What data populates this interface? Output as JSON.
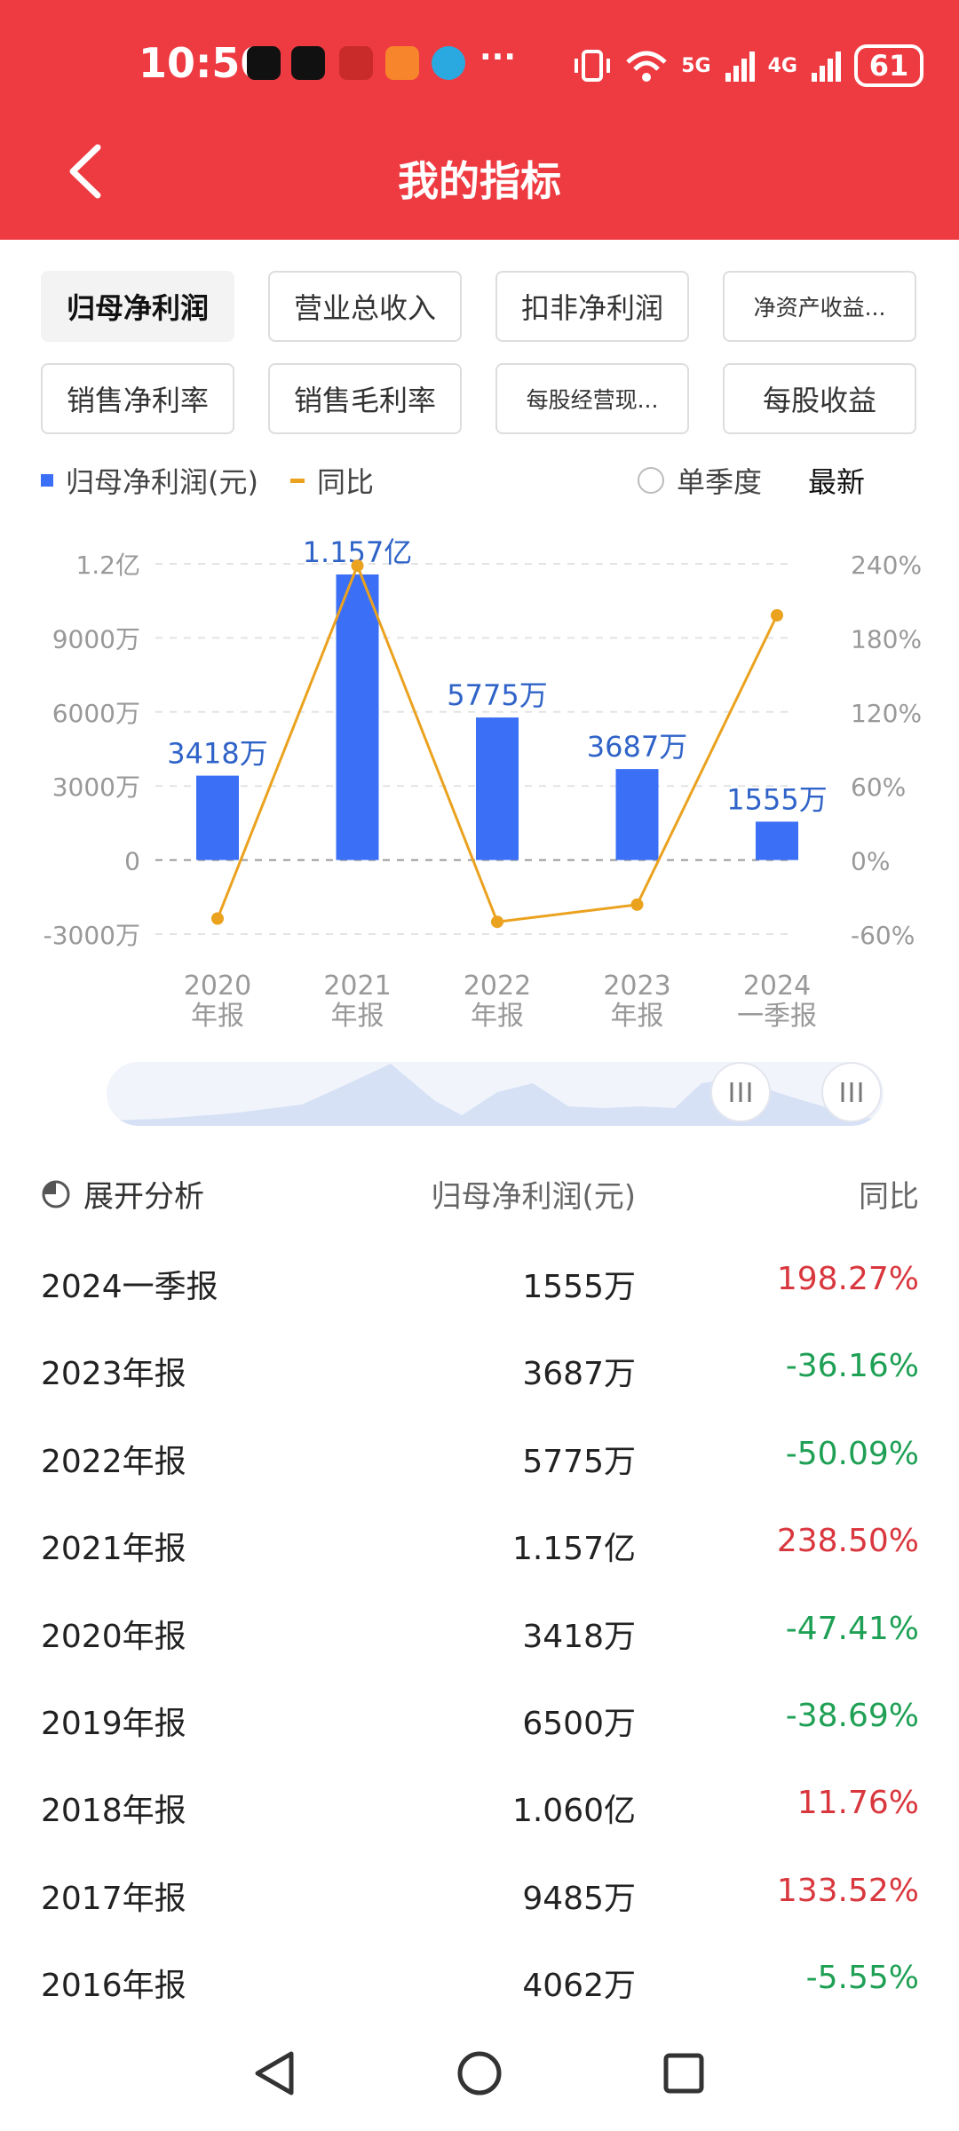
{
  "status_bar": {
    "time": "10:50",
    "network_5g": "5G",
    "network_4g": "4G",
    "battery": "61"
  },
  "header": {
    "title": "我的指标"
  },
  "tabs": [
    {
      "label": "归母净利润",
      "active": true
    },
    {
      "label": "营业总收入",
      "active": false
    },
    {
      "label": "扣非净利润",
      "active": false
    },
    {
      "label": "净资产收益...",
      "active": false
    },
    {
      "label": "销售净利率",
      "active": false
    },
    {
      "label": "销售毛利率",
      "active": false
    },
    {
      "label": "每股经营现...",
      "active": false
    },
    {
      "label": "每股收益",
      "active": false
    }
  ],
  "legend": {
    "bar_label": "归母净利润(元)",
    "line_label": "同比",
    "single_quarter": "单季度",
    "latest": "最新"
  },
  "colors": {
    "bar": "#3b6ff5",
    "line": "#eaa21f",
    "positive": "#d9373e",
    "negative": "#1fa055",
    "header": "#ee3a41"
  },
  "chart_data": {
    "type": "bar",
    "categories": [
      "2020\n年报",
      "2021\n年报",
      "2022\n年报",
      "2023\n年报",
      "2024\n一季报"
    ],
    "series": [
      {
        "name": "归母净利润(元)",
        "axis": "left",
        "values": [
          34180000,
          115700000,
          57750000,
          36870000,
          15550000
        ],
        "labels": [
          "3418万",
          "1.157亿",
          "5775万",
          "3687万",
          "1555万"
        ]
      },
      {
        "name": "同比",
        "axis": "right",
        "type": "line",
        "values": [
          -47.41,
          238.5,
          -50.09,
          -36.16,
          198.27
        ]
      }
    ],
    "left_axis": {
      "ticks": [
        "1.2亿",
        "9000万",
        "6000万",
        "3000万",
        "0",
        "-3000万"
      ],
      "ylim": [
        -30000000,
        120000000
      ]
    },
    "right_axis": {
      "ticks": [
        "240%",
        "180%",
        "120%",
        "60%",
        "0%",
        "-60%"
      ],
      "ylim": [
        -60,
        240
      ]
    }
  },
  "analysis": {
    "expand_label": "展开分析",
    "column_value": "归母净利润(元)",
    "column_yoy": "同比",
    "rows": [
      {
        "period": "2024一季报",
        "value": "1555万",
        "yoy": "198.27%",
        "positive": true
      },
      {
        "period": "2023年报",
        "value": "3687万",
        "yoy": "-36.16%",
        "positive": false
      },
      {
        "period": "2022年报",
        "value": "5775万",
        "yoy": "-50.09%",
        "positive": false
      },
      {
        "period": "2021年报",
        "value": "1.157亿",
        "yoy": "238.50%",
        "positive": true
      },
      {
        "period": "2020年报",
        "value": "3418万",
        "yoy": "-47.41%",
        "positive": false
      },
      {
        "period": "2019年报",
        "value": "6500万",
        "yoy": "-38.69%",
        "positive": false
      },
      {
        "period": "2018年报",
        "value": "1.060亿",
        "yoy": "11.76%",
        "positive": true
      },
      {
        "period": "2017年报",
        "value": "9485万",
        "yoy": "133.52%",
        "positive": true
      },
      {
        "period": "2016年报",
        "value": "4062万",
        "yoy": "-5.55%",
        "positive": false
      }
    ]
  }
}
